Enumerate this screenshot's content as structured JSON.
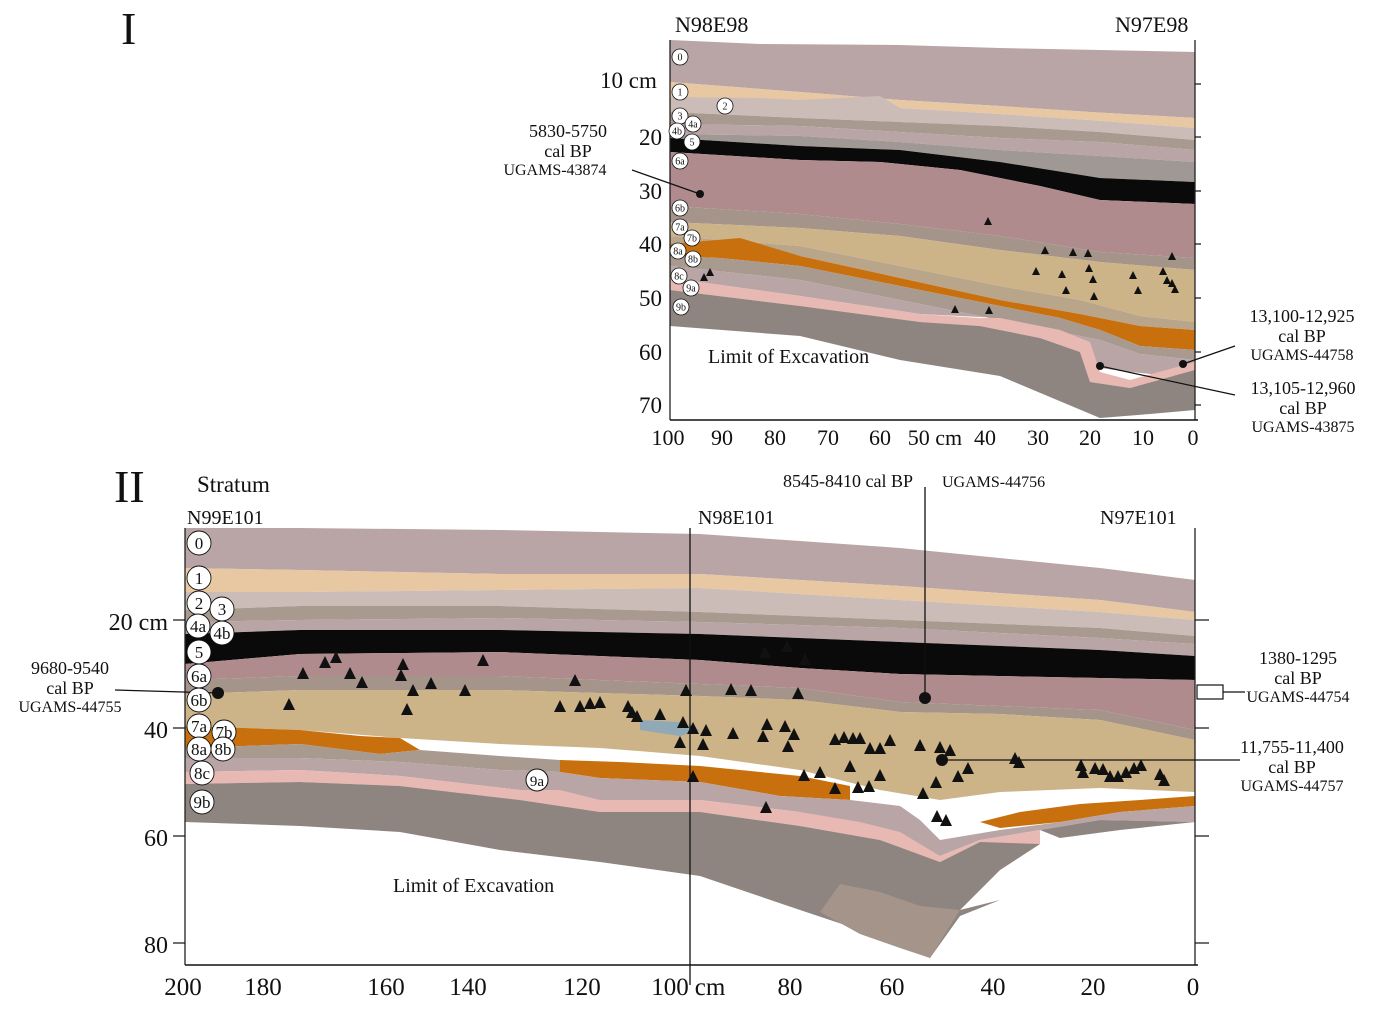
{
  "panels": [
    {
      "id": "I",
      "title": "I",
      "grid_left": "N98E98",
      "grid_right": "N97E98",
      "depth_label_10": "10 cm",
      "depth_ticks": [
        "20",
        "30",
        "40",
        "50",
        "60",
        "70"
      ],
      "horiz_ticks": [
        "100",
        "90",
        "80",
        "70",
        "60",
        "50 cm",
        "40",
        "30",
        "20",
        "10",
        "0"
      ],
      "strata": [
        "0",
        "1",
        "2",
        "3",
        "4a",
        "4b",
        "5",
        "6a",
        "6b",
        "7a",
        "7b",
        "8a",
        "8b",
        "8c",
        "9a",
        "9b"
      ],
      "limit_label": "Limit of Excavation",
      "dates": [
        {
          "range": "5830-5750",
          "unit": "cal BP",
          "lab": "UGAMS-43874"
        },
        {
          "range": "13,100-12,925",
          "unit": "cal BP",
          "lab": "UGAMS-44758"
        },
        {
          "range": "13,105-12,960",
          "unit": "cal BP",
          "lab": "UGAMS-43875"
        }
      ]
    },
    {
      "id": "II",
      "title": "II",
      "stratum_header": "Stratum",
      "grid_left": "N99E101",
      "grid_mid": "N98E101",
      "grid_right": "N97E101",
      "depth_ticks": [
        "20 cm",
        "40",
        "60",
        "80"
      ],
      "horiz_ticks": [
        "200",
        "180",
        "160",
        "140",
        "120",
        "100",
        "cm",
        "80",
        "60",
        "40",
        "20",
        "0"
      ],
      "strata": [
        "0",
        "1",
        "2",
        "3",
        "4a",
        "4b",
        "5",
        "6a",
        "6b",
        "7a",
        "7b",
        "8a",
        "8b",
        "8c",
        "9b"
      ],
      "stratum_9a": "9a",
      "limit_label": "Limit of Excavation",
      "date_top": "8545-8410 cal BP",
      "date_top_lab": "UGAMS-44756",
      "dates": [
        {
          "range": "9680-9540",
          "unit": "cal BP",
          "lab": "UGAMS-44755"
        },
        {
          "range": "1380-1295",
          "unit": "cal BP",
          "lab": "UGAMS-44754"
        },
        {
          "range": "11,755-11,400",
          "unit": "cal BP",
          "lab": "UGAMS-44757"
        }
      ]
    }
  ],
  "colors": {
    "mauve": "#b9a5a6",
    "tan_peach": "#e8c7a3",
    "light_grey": "#cbbcb8",
    "dark_taupe": "#a99a90",
    "black": "#0a0a0a",
    "rose": "#b08b8e",
    "khaki": "#cdb388",
    "orange": "#c8700e",
    "pink": "#e8b8b2",
    "grey_brown": "#8f8580",
    "blue": "#8fa9b6"
  }
}
